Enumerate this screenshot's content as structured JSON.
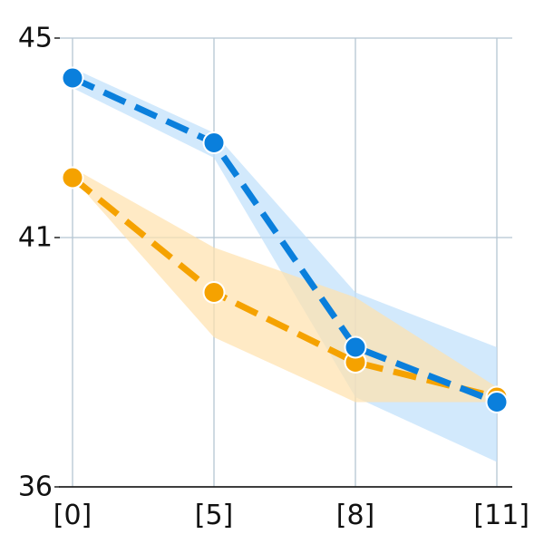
{
  "chart_data": {
    "type": "line",
    "x": [
      "[0]",
      "[5]",
      "[8]",
      "[11]"
    ],
    "xlabel": "",
    "ylabel": "",
    "ylim": [
      36,
      45
    ],
    "yticks": [
      36,
      41,
      45
    ],
    "grid": true,
    "legend": "none",
    "series": [
      {
        "color": "#0a7fdc",
        "band_color": "#bfe0fb",
        "values": [
          44.2,
          42.9,
          38.8,
          37.7
        ],
        "lower": [
          44.0,
          42.6,
          37.8,
          36.5
        ],
        "upper": [
          44.4,
          43.1,
          39.9,
          38.8
        ]
      },
      {
        "color": "#f5a200",
        "band_color": "#ffe1ad",
        "values": [
          42.2,
          39.9,
          38.5,
          37.8
        ],
        "lower": [
          42.2,
          39.0,
          37.7,
          37.7
        ],
        "upper": [
          42.4,
          40.8,
          39.8,
          38.0
        ]
      }
    ]
  }
}
